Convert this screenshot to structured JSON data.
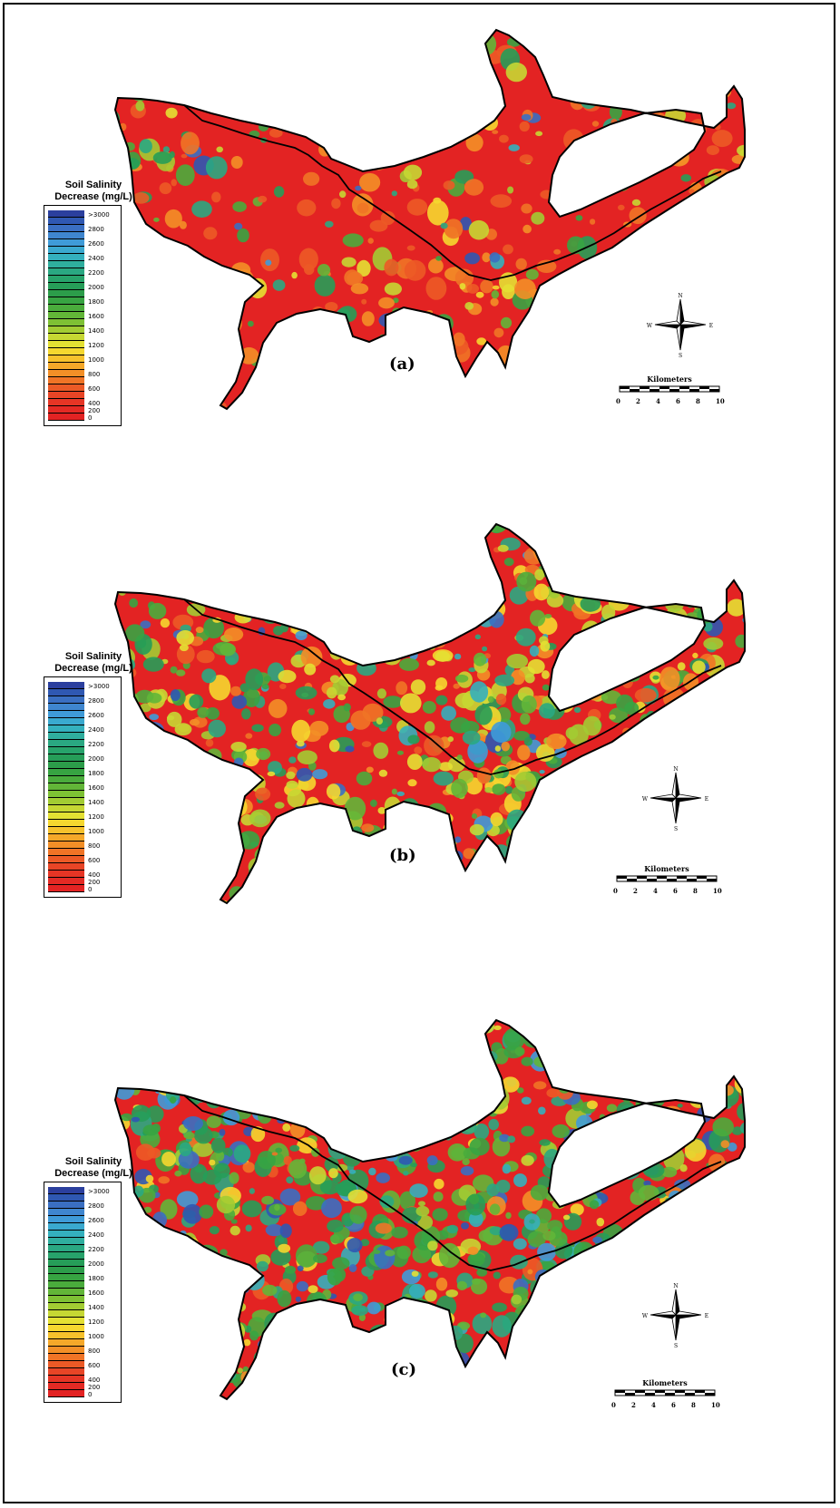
{
  "legend": {
    "title_line1": "Soil Salinity",
    "title_line2": "Decrease (mg/L)",
    "classes": [
      {
        "label": ">3000",
        "color": "#2b3f9e"
      },
      {
        "label": "",
        "color": "#2f58b2"
      },
      {
        "label": "2800",
        "color": "#3a6fc2"
      },
      {
        "label": "",
        "color": "#3f86cf"
      },
      {
        "label": "2600",
        "color": "#3f9bd8"
      },
      {
        "label": "",
        "color": "#3aa9cf"
      },
      {
        "label": "2400",
        "color": "#34b0bd"
      },
      {
        "label": "",
        "color": "#2fae9e"
      },
      {
        "label": "2200",
        "color": "#2aa882"
      },
      {
        "label": "",
        "color": "#27a36b"
      },
      {
        "label": "2000",
        "color": "#269d58"
      },
      {
        "label": "",
        "color": "#2c9d4a"
      },
      {
        "label": "1800",
        "color": "#37a442"
      },
      {
        "label": "",
        "color": "#4aac3c"
      },
      {
        "label": "1600",
        "color": "#62b638"
      },
      {
        "label": "",
        "color": "#7ec134"
      },
      {
        "label": "1400",
        "color": "#a2cc33"
      },
      {
        "label": "",
        "color": "#c6d733"
      },
      {
        "label": "1200",
        "color": "#e4e033"
      },
      {
        "label": "",
        "color": "#f5d72f"
      },
      {
        "label": "1000",
        "color": "#f6c12c"
      },
      {
        "label": "",
        "color": "#f5a829"
      },
      {
        "label": "800",
        "color": "#f38f27"
      },
      {
        "label": "",
        "color": "#f07426"
      },
      {
        "label": "600",
        "color": "#ec5a26"
      },
      {
        "label": "",
        "color": "#e84526"
      },
      {
        "label": "400",
        "color": "#e63525"
      },
      {
        "label": "200",
        "color": "#e42a24"
      },
      {
        "label": "0",
        "color": "#e32323"
      }
    ]
  },
  "panels": [
    {
      "id": "a",
      "label": "(a)",
      "mix": {
        "red": 0.72,
        "orange": 0.14,
        "yellow": 0.05,
        "green": 0.07,
        "blue": 0.02
      }
    },
    {
      "id": "b",
      "label": "(b)",
      "mix": {
        "red": 0.4,
        "orange": 0.1,
        "yellow": 0.22,
        "green": 0.22,
        "blue": 0.06
      }
    },
    {
      "id": "c",
      "label": "(c)",
      "mix": {
        "red": 0.28,
        "orange": 0.05,
        "yellow": 0.1,
        "green": 0.42,
        "blue": 0.15
      }
    }
  ],
  "compass": {
    "n": "N",
    "s": "S",
    "e": "E",
    "w": "W"
  },
  "scale": {
    "title": "Kilometers",
    "ticks": [
      "0",
      "2",
      "4",
      "6",
      "8",
      "10"
    ]
  }
}
